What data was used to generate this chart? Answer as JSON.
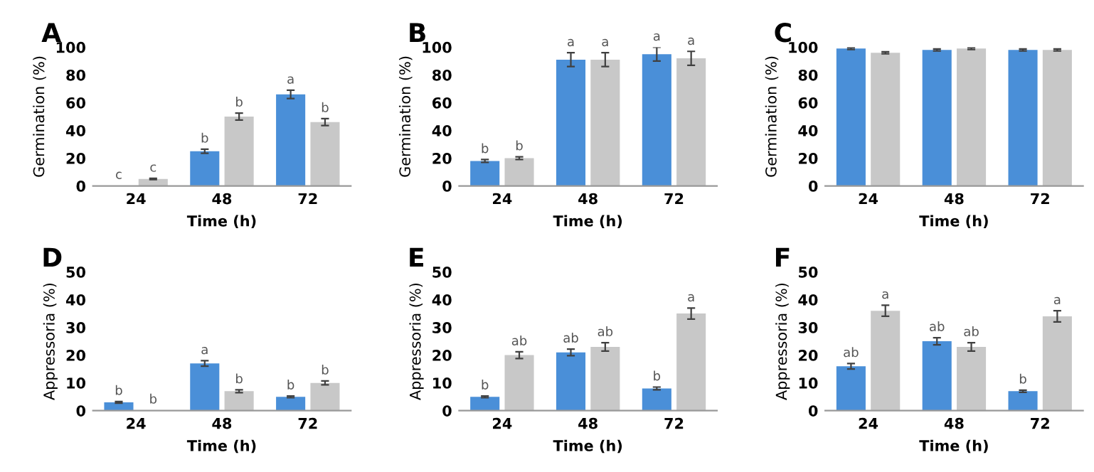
{
  "chart_data": [
    {
      "type": "bar",
      "title": "A",
      "xlabel": "Time (h)",
      "ylabel": "Germination (%)",
      "categories": [
        "24",
        "48",
        "72"
      ],
      "ylim": [
        0,
        100
      ],
      "yticks": [
        0,
        20,
        40,
        60,
        80,
        100
      ],
      "series": [
        {
          "color": "#4a8fd8",
          "values": [
            0.3,
            25,
            66
          ],
          "errors": [
            null,
            1.5,
            3
          ],
          "value_labels": [
            "c",
            "b",
            "a"
          ]
        },
        {
          "color": "#c8c8c8",
          "values": [
            5,
            50,
            46
          ],
          "errors": [
            0.5,
            2.5,
            2.5
          ],
          "value_labels": [
            "c",
            "b",
            "b"
          ]
        }
      ]
    },
    {
      "type": "bar",
      "title": "B",
      "xlabel": "Time (h)",
      "ylabel": "Germination (%)",
      "categories": [
        "24",
        "48",
        "72"
      ],
      "ylim": [
        0,
        100
      ],
      "yticks": [
        0,
        20,
        40,
        60,
        80,
        100
      ],
      "series": [
        {
          "color": "#4a8fd8",
          "values": [
            18,
            91,
            95
          ],
          "errors": [
            1,
            5,
            5
          ],
          "value_labels": [
            "b",
            "a",
            "a"
          ]
        },
        {
          "color": "#c8c8c8",
          "values": [
            20,
            91,
            92
          ],
          "errors": [
            1,
            5,
            5
          ],
          "value_labels": [
            "b",
            "a",
            "a"
          ]
        }
      ]
    },
    {
      "type": "bar",
      "title": "C",
      "xlabel": "Time (h)",
      "ylabel": "Germination (%)",
      "categories": [
        "24",
        "48",
        "72"
      ],
      "ylim": [
        0,
        100
      ],
      "yticks": [
        0,
        20,
        40,
        60,
        80,
        100
      ],
      "series": [
        {
          "color": "#4a8fd8",
          "values": [
            99,
            98,
            98
          ],
          "errors": [
            0.7,
            0.7,
            0.7
          ]
        },
        {
          "color": "#c8c8c8",
          "values": [
            96,
            99,
            98
          ],
          "errors": [
            0.7,
            0.7,
            0.7
          ]
        }
      ]
    },
    {
      "type": "bar",
      "title": "D",
      "xlabel": "Time (h)",
      "ylabel": "Appressoria (%)",
      "categories": [
        "24",
        "48",
        "72"
      ],
      "ylim": [
        0,
        50
      ],
      "yticks": [
        0,
        10,
        20,
        30,
        40,
        50
      ],
      "series": [
        {
          "color": "#4a8fd8",
          "values": [
            3,
            17,
            5
          ],
          "errors": [
            0.3,
            1,
            0.3
          ],
          "value_labels": [
            "b",
            "a",
            "b"
          ]
        },
        {
          "color": "#c8c8c8",
          "values": [
            0.2,
            7,
            10
          ],
          "errors": [
            null,
            0.5,
            0.7
          ],
          "value_labels": [
            "b",
            "b",
            "b"
          ]
        }
      ]
    },
    {
      "type": "bar",
      "title": "E",
      "xlabel": "Time (h)",
      "ylabel": "Appressoria (%)",
      "categories": [
        "24",
        "48",
        "72"
      ],
      "ylim": [
        0,
        50
      ],
      "yticks": [
        0,
        10,
        20,
        30,
        40,
        50
      ],
      "series": [
        {
          "color": "#4a8fd8",
          "values": [
            5,
            21,
            8
          ],
          "errors": [
            0.3,
            1.2,
            0.5
          ],
          "value_labels": [
            "b",
            "ab",
            "b"
          ]
        },
        {
          "color": "#c8c8c8",
          "values": [
            20,
            23,
            35
          ],
          "errors": [
            1.2,
            1.5,
            2
          ],
          "value_labels": [
            "ab",
            "ab",
            "a"
          ]
        }
      ]
    },
    {
      "type": "bar",
      "title": "F",
      "xlabel": "Time (h)",
      "ylabel": "Appressoria (%)",
      "categories": [
        "24",
        "48",
        "72"
      ],
      "ylim": [
        0,
        50
      ],
      "yticks": [
        0,
        10,
        20,
        30,
        40,
        50
      ],
      "series": [
        {
          "color": "#4a8fd8",
          "values": [
            16,
            25,
            7
          ],
          "errors": [
            1,
            1.3,
            0.4
          ],
          "value_labels": [
            "ab",
            "ab",
            "b"
          ]
        },
        {
          "color": "#c8c8c8",
          "values": [
            36,
            23,
            34
          ],
          "errors": [
            2,
            1.5,
            2
          ],
          "value_labels": [
            "a",
            "ab",
            "a"
          ]
        }
      ]
    }
  ]
}
